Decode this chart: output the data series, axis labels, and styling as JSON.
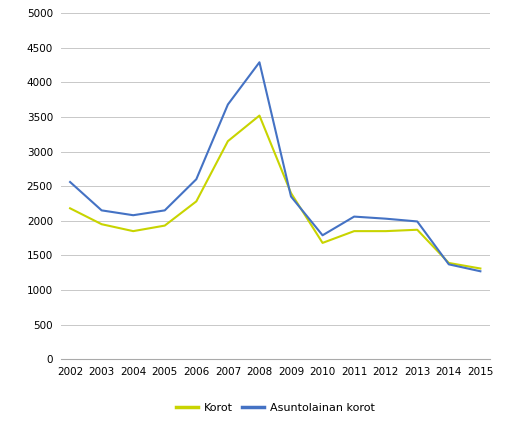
{
  "years": [
    2002,
    2003,
    2004,
    2005,
    2006,
    2007,
    2008,
    2009,
    2010,
    2011,
    2012,
    2013,
    2014,
    2015
  ],
  "korot": [
    2180,
    1950,
    1850,
    1930,
    2280,
    3150,
    3520,
    2400,
    1680,
    1850,
    1850,
    1870,
    1390,
    1310
  ],
  "asuntolainan_korot": [
    2560,
    2150,
    2080,
    2150,
    2600,
    3680,
    4290,
    2350,
    1790,
    2060,
    2030,
    1990,
    1370,
    1270
  ],
  "korot_color": "#c8d400",
  "asuntolainan_color": "#4472c4",
  "ylim": [
    0,
    5000
  ],
  "yticks": [
    0,
    500,
    1000,
    1500,
    2000,
    2500,
    3000,
    3500,
    4000,
    4500,
    5000
  ],
  "legend_korot": "Korot",
  "legend_asuntolainan": "Asuntolainan korot",
  "grid_color": "#c8c8c8",
  "line_width": 1.5,
  "tick_fontsize": 7.5,
  "legend_fontsize": 8
}
